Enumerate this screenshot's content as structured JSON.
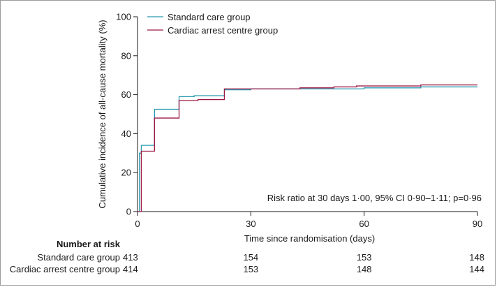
{
  "chart_data": {
    "type": "line",
    "step": true,
    "xlabel": "Time since randomisation (days)",
    "ylabel": "Cumulative incidence of all-cause mortality (%)",
    "xlim": [
      0,
      90
    ],
    "ylim": [
      0,
      100
    ],
    "xticks": [
      0,
      30,
      60,
      90
    ],
    "yticks": [
      0,
      20,
      40,
      60,
      80,
      100
    ],
    "grid": false,
    "legend_position": "top-left",
    "annotation": "Risk ratio at 30 days 1·00, 95% CI 0·90–1·11; p=0·96",
    "series": [
      {
        "name": "Standard care group",
        "color": "#2a9bb0",
        "x": [
          0,
          0.5,
          1,
          4.5,
          11,
          15,
          23,
          30,
          45,
          55,
          60,
          70,
          75,
          90
        ],
        "y": [
          0,
          30,
          34,
          52.5,
          59,
          59.5,
          62.5,
          63,
          63,
          63,
          63.5,
          63.5,
          64,
          64
        ]
      },
      {
        "name": "Cardiac arrest centre group",
        "color": "#9c1b45",
        "x": [
          0,
          1,
          4.5,
          11,
          16,
          23,
          30,
          43,
          52,
          58,
          65,
          75,
          90
        ],
        "y": [
          0,
          31,
          48,
          57,
          57.5,
          63,
          63,
          63.5,
          64,
          64.5,
          64.5,
          65,
          65
        ]
      }
    ],
    "risk_table": {
      "title": "Number at risk",
      "times": [
        0,
        30,
        60,
        90
      ],
      "rows": [
        {
          "label": "Standard care group",
          "values": [
            "413",
            "154",
            "153",
            "148"
          ]
        },
        {
          "label": "Cardiac arrest centre group",
          "values": [
            "414",
            "153",
            "148",
            "144"
          ]
        }
      ]
    }
  }
}
